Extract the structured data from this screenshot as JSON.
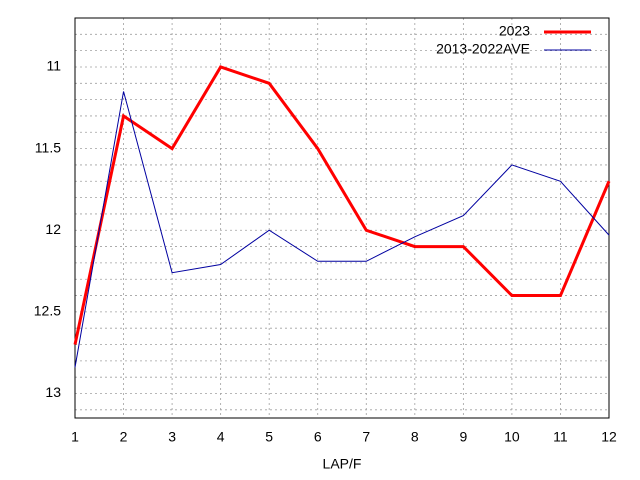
{
  "chart_data": {
    "type": "line",
    "x_label": "LAP/F",
    "x": [
      1,
      2,
      3,
      4,
      5,
      6,
      7,
      8,
      9,
      10,
      11,
      12
    ],
    "xlim": [
      1,
      12
    ],
    "xticks": [
      1,
      2,
      3,
      4,
      5,
      6,
      7,
      8,
      9,
      10,
      11,
      12
    ],
    "ylim": [
      13.15,
      10.7
    ],
    "yticks": [
      11,
      11.5,
      12,
      12.5,
      13
    ],
    "y_minor_ticks": [
      10.8,
      10.9,
      11.1,
      11.2,
      11.3,
      11.4,
      11.6,
      11.7,
      11.8,
      11.9,
      12.1,
      12.2,
      12.3,
      12.4,
      12.6,
      12.7,
      12.8,
      12.9,
      13.1
    ],
    "grid": true,
    "legend": "top-right",
    "series": [
      {
        "name": "2023",
        "color": "#ff0000",
        "width": 3,
        "values": [
          12.7,
          11.3,
          11.5,
          11.0,
          11.1,
          11.5,
          12.0,
          12.1,
          12.1,
          12.4,
          12.4,
          11.7
        ]
      },
      {
        "name": "2013-2022AVE",
        "color": "#0000a0",
        "width": 1,
        "values": [
          12.84,
          11.15,
          12.26,
          12.21,
          12.0,
          12.19,
          12.19,
          12.04,
          11.91,
          11.6,
          11.7,
          12.03
        ]
      }
    ]
  }
}
